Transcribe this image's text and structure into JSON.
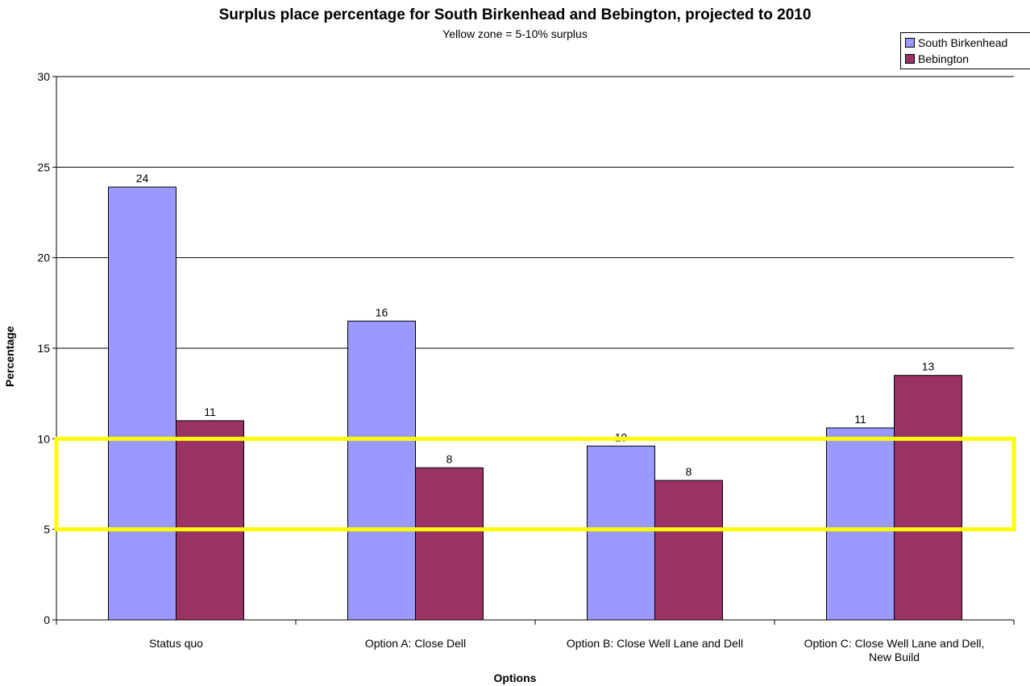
{
  "chart_data": {
    "type": "bar",
    "title": "Surplus place percentage for South Birkenhead and Bebington, projected to 2010",
    "subtitle": "Yellow zone = 5-10% surplus",
    "xlabel": "Options",
    "ylabel": "Percentage",
    "ylim": [
      0,
      30
    ],
    "yticks": [
      "0",
      "5",
      "10",
      "15",
      "20",
      "25",
      "30"
    ],
    "grid": true,
    "legend_position": "top-right",
    "categories": [
      [
        "Status quo"
      ],
      [
        "Option A: Close Dell"
      ],
      [
        "Option B: Close Well Lane and Dell"
      ],
      [
        "Option C: Close Well Lane and Dell,",
        "New Build"
      ]
    ],
    "series": [
      {
        "name": "South Birkenhead",
        "color": "#9999ff",
        "values": [
          23.9,
          16.5,
          9.6,
          10.6
        ],
        "labels": [
          "24",
          "16",
          "10",
          "11"
        ]
      },
      {
        "name": "Bebington",
        "color": "#993366",
        "values": [
          11.0,
          8.4,
          7.7,
          13.5
        ],
        "labels": [
          "11",
          "8",
          "8",
          "13"
        ]
      }
    ],
    "highlight_band": {
      "from": 5,
      "to": 10,
      "color": "#ffff00"
    }
  }
}
